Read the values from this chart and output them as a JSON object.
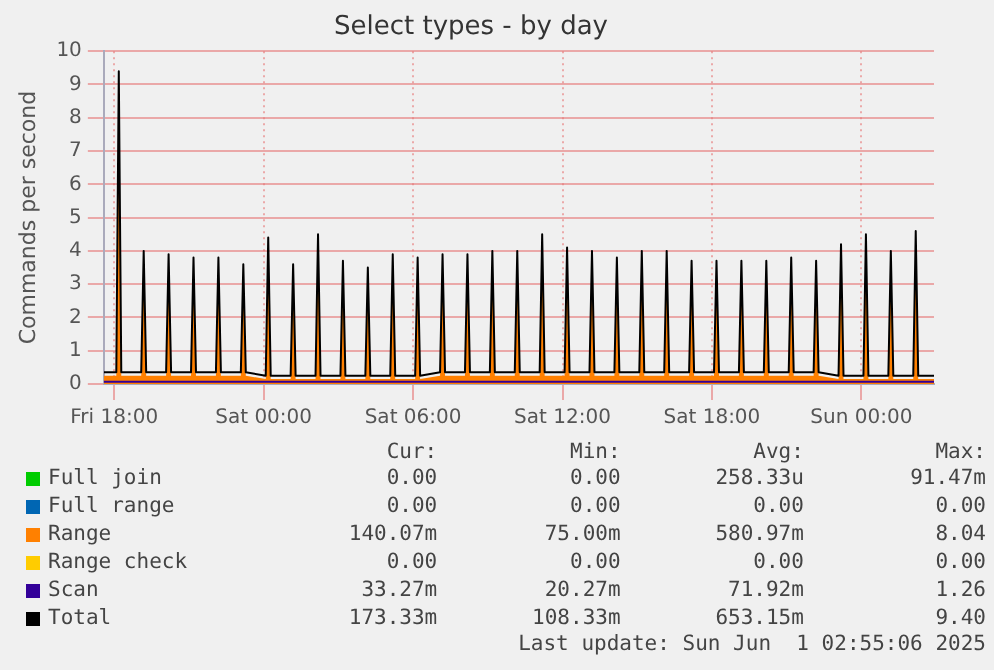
{
  "chart_data": {
    "type": "line",
    "title": "Select types - by day",
    "ylabel": "Commands per second",
    "xlim": [
      "2025-05-30T17:35",
      "2025-06-01T02:55"
    ],
    "xticks": [
      {
        "value": "2025-05-30T18:00",
        "label": "Fri 18:00"
      },
      {
        "value": "2025-05-31T00:00",
        "label": "Sat 00:00"
      },
      {
        "value": "2025-05-31T06:00",
        "label": "Sat 06:00"
      },
      {
        "value": "2025-05-31T12:00",
        "label": "Sat 12:00"
      },
      {
        "value": "2025-05-31T18:00",
        "label": "Sat 18:00"
      },
      {
        "value": "2025-06-01T00:00",
        "label": "Sun 00:00"
      }
    ],
    "ylim": [
      0,
      10
    ],
    "yticks": [
      0,
      1,
      2,
      3,
      4,
      5,
      6,
      7,
      8,
      9,
      10
    ],
    "grid": true,
    "legend": "bottom",
    "x": [
      "2025-05-30T17:35",
      "2025-05-30T18:05",
      "2025-05-30T18:11",
      "2025-05-30T18:17",
      "2025-05-30T19:05",
      "2025-05-30T19:11",
      "2025-05-30T19:17",
      "2025-05-30T20:05",
      "2025-05-30T20:11",
      "2025-05-30T20:17",
      "2025-05-30T21:05",
      "2025-05-30T21:11",
      "2025-05-30T21:17",
      "2025-05-30T22:05",
      "2025-05-30T22:11",
      "2025-05-30T22:17",
      "2025-05-30T23:05",
      "2025-05-30T23:11",
      "2025-05-30T23:17",
      "2025-05-31T00:05",
      "2025-05-31T00:11",
      "2025-05-31T00:17",
      "2025-05-31T01:05",
      "2025-05-31T01:11",
      "2025-05-31T01:17",
      "2025-05-31T02:05",
      "2025-05-31T02:11",
      "2025-05-31T02:17",
      "2025-05-31T03:05",
      "2025-05-31T03:11",
      "2025-05-31T03:17",
      "2025-05-31T04:05",
      "2025-05-31T04:11",
      "2025-05-31T04:17",
      "2025-05-31T05:05",
      "2025-05-31T05:11",
      "2025-05-31T05:17",
      "2025-05-31T06:05",
      "2025-05-31T06:11",
      "2025-05-31T06:17",
      "2025-05-31T07:05",
      "2025-05-31T07:11",
      "2025-05-31T07:17",
      "2025-05-31T08:05",
      "2025-05-31T08:11",
      "2025-05-31T08:17",
      "2025-05-31T09:05",
      "2025-05-31T09:11",
      "2025-05-31T09:17",
      "2025-05-31T10:05",
      "2025-05-31T10:11",
      "2025-05-31T10:17",
      "2025-05-31T11:05",
      "2025-05-31T11:11",
      "2025-05-31T11:17",
      "2025-05-31T12:05",
      "2025-05-31T12:11",
      "2025-05-31T12:17",
      "2025-05-31T13:05",
      "2025-05-31T13:11",
      "2025-05-31T13:17",
      "2025-05-31T14:05",
      "2025-05-31T14:11",
      "2025-05-31T14:17",
      "2025-05-31T15:05",
      "2025-05-31T15:11",
      "2025-05-31T15:17",
      "2025-05-31T16:05",
      "2025-05-31T16:11",
      "2025-05-31T16:17",
      "2025-05-31T17:05",
      "2025-05-31T17:11",
      "2025-05-31T17:17",
      "2025-05-31T18:05",
      "2025-05-31T18:11",
      "2025-05-31T18:17",
      "2025-05-31T19:05",
      "2025-05-31T19:11",
      "2025-05-31T19:17",
      "2025-05-31T20:05",
      "2025-05-31T20:11",
      "2025-05-31T20:17",
      "2025-05-31T21:05",
      "2025-05-31T21:11",
      "2025-05-31T21:17",
      "2025-05-31T22:05",
      "2025-05-31T22:11",
      "2025-05-31T22:17",
      "2025-05-31T23:05",
      "2025-05-31T23:11",
      "2025-05-31T23:17",
      "2025-06-01T00:05",
      "2025-06-01T00:11",
      "2025-06-01T00:17",
      "2025-06-01T01:05",
      "2025-06-01T01:11",
      "2025-06-01T01:17",
      "2025-06-01T02:05",
      "2025-06-01T02:11",
      "2025-06-01T02:17",
      "2025-06-01T02:55"
    ],
    "series": [
      {
        "name": "Full join",
        "color": "#00cc00",
        "values": [
          null,
          null,
          null,
          null,
          null,
          null,
          null,
          null,
          null,
          null,
          null,
          null,
          null,
          null,
          null,
          null,
          null,
          null,
          null,
          null,
          null,
          null,
          null,
          null,
          null,
          null,
          null,
          null,
          null,
          null,
          null,
          null,
          null,
          null,
          null,
          null,
          null,
          null,
          null,
          null,
          null,
          null,
          null,
          null,
          null,
          null,
          null,
          null,
          null,
          null,
          null,
          null,
          null,
          null,
          null,
          null,
          null,
          null,
          null,
          null,
          null,
          null,
          null,
          null,
          null,
          null,
          null,
          null,
          null,
          null,
          null,
          null,
          null,
          null,
          null,
          null,
          null,
          null,
          null,
          null,
          null,
          null,
          null,
          null,
          null,
          null,
          null,
          null,
          null,
          null,
          null,
          null,
          null,
          null,
          null,
          null,
          null,
          null,
          null,
          null,
          null
        ]
      },
      {
        "name": "Full range",
        "color": "#0066b3",
        "values": [
          null,
          null,
          null,
          null,
          null,
          null,
          null,
          null,
          null,
          null,
          null,
          null,
          null,
          null,
          null,
          null,
          null,
          null,
          null,
          null,
          null,
          null,
          null,
          null,
          null,
          null,
          null,
          null,
          null,
          null,
          null,
          null,
          null,
          null,
          null,
          null,
          null,
          null,
          null,
          null,
          null,
          null,
          null,
          null,
          null,
          null,
          null,
          null,
          null,
          null,
          null,
          null,
          null,
          null,
          null,
          null,
          null,
          null,
          null,
          null,
          null,
          null,
          null,
          null,
          null,
          null,
          null,
          null,
          null,
          null,
          null,
          null,
          null,
          null,
          null,
          null,
          null,
          null,
          null,
          null,
          null,
          null,
          null,
          null,
          null,
          null,
          null,
          null,
          null,
          null,
          null,
          null,
          null,
          null,
          null,
          null,
          null,
          null,
          null,
          null,
          null
        ]
      },
      {
        "name": "Range",
        "type": "area",
        "color": "#ff8000",
        "values": [
          0.25,
          0.25,
          8.0,
          0.25,
          0.25,
          3.4,
          0.25,
          0.25,
          3.3,
          0.25,
          0.25,
          3.2,
          0.25,
          0.25,
          3.2,
          0.25,
          0.25,
          3.0,
          0.25,
          0.15,
          3.8,
          0.15,
          0.15,
          3.0,
          0.15,
          0.15,
          3.9,
          0.15,
          0.15,
          3.1,
          0.15,
          0.15,
          2.9,
          0.15,
          0.15,
          3.3,
          0.15,
          0.15,
          3.2,
          0.15,
          0.25,
          3.3,
          0.25,
          0.25,
          3.3,
          0.25,
          0.25,
          3.4,
          0.25,
          0.25,
          3.4,
          0.25,
          0.25,
          3.9,
          0.25,
          0.25,
          3.5,
          0.25,
          0.25,
          3.4,
          0.25,
          0.25,
          3.2,
          0.25,
          0.25,
          3.4,
          0.25,
          0.25,
          3.4,
          0.25,
          0.25,
          3.1,
          0.25,
          0.25,
          3.1,
          0.25,
          0.25,
          3.1,
          0.25,
          0.25,
          3.1,
          0.25,
          0.25,
          3.2,
          0.25,
          0.25,
          3.1,
          0.25,
          0.15,
          3.6,
          0.15,
          0.15,
          3.9,
          0.15,
          0.15,
          3.4,
          0.15,
          0.15,
          4.0,
          0.15,
          0.15
        ]
      },
      {
        "name": "Range check",
        "color": "#ffcc00",
        "values": [
          null,
          null,
          null,
          null,
          null,
          null,
          null,
          null,
          null,
          null,
          null,
          null,
          null,
          null,
          null,
          null,
          null,
          null,
          null,
          null,
          null,
          null,
          null,
          null,
          null,
          null,
          null,
          null,
          null,
          null,
          null,
          null,
          null,
          null,
          null,
          null,
          null,
          null,
          null,
          null,
          null,
          null,
          null,
          null,
          null,
          null,
          null,
          null,
          null,
          null,
          null,
          null,
          null,
          null,
          null,
          null,
          null,
          null,
          null,
          null,
          null,
          null,
          null,
          null,
          null,
          null,
          null,
          null,
          null,
          null,
          null,
          null,
          null,
          null,
          null,
          null,
          null,
          null,
          null,
          null,
          null,
          null,
          null,
          null,
          null,
          null,
          null,
          null,
          null,
          null,
          null,
          null,
          null,
          null,
          null,
          null,
          null,
          null,
          null,
          null,
          null
        ]
      },
      {
        "name": "Scan",
        "color": "#330099",
        "x": [
          "2025-05-30T17:35",
          "2025-06-01T02:55"
        ],
        "values": [
          0.07,
          0.07
        ]
      },
      {
        "name": "Total",
        "color": "#000000",
        "values": [
          0.35,
          0.35,
          9.4,
          0.35,
          0.35,
          4.0,
          0.35,
          0.35,
          3.9,
          0.35,
          0.35,
          3.8,
          0.35,
          0.35,
          3.8,
          0.35,
          0.35,
          3.6,
          0.35,
          0.25,
          4.4,
          0.25,
          0.25,
          3.6,
          0.25,
          0.25,
          4.5,
          0.25,
          0.25,
          3.7,
          0.25,
          0.25,
          3.5,
          0.25,
          0.25,
          3.9,
          0.25,
          0.25,
          3.8,
          0.25,
          0.35,
          3.9,
          0.35,
          0.35,
          3.9,
          0.35,
          0.35,
          4.0,
          0.35,
          0.35,
          4.0,
          0.35,
          0.35,
          4.5,
          0.35,
          0.35,
          4.1,
          0.35,
          0.35,
          4.0,
          0.35,
          0.35,
          3.8,
          0.35,
          0.35,
          4.0,
          0.35,
          0.35,
          4.0,
          0.35,
          0.35,
          3.7,
          0.35,
          0.35,
          3.7,
          0.35,
          0.35,
          3.7,
          0.35,
          0.35,
          3.7,
          0.35,
          0.35,
          3.8,
          0.35,
          0.35,
          3.7,
          0.35,
          0.25,
          4.2,
          0.25,
          0.25,
          4.5,
          0.25,
          0.25,
          4.0,
          0.25,
          0.25,
          4.6,
          0.25,
          0.25
        ]
      }
    ],
    "annotations": [
      "Cur:",
      "Min:",
      "Avg:",
      "Max:",
      "0.00",
      "0.00",
      "258.33u",
      "91.47m",
      "0.00",
      "0.00",
      "0.00",
      "0.00",
      "140.07m",
      "75.00m",
      "580.97m",
      "8.04",
      "0.00",
      "0.00",
      "0.00",
      "0.00",
      "33.27m",
      "20.27m",
      "71.92m",
      "1.26",
      "173.33m",
      "108.33m",
      "653.15m",
      "9.40",
      "Last update: Sun Jun  1 02:55:06 2025"
    ]
  }
}
